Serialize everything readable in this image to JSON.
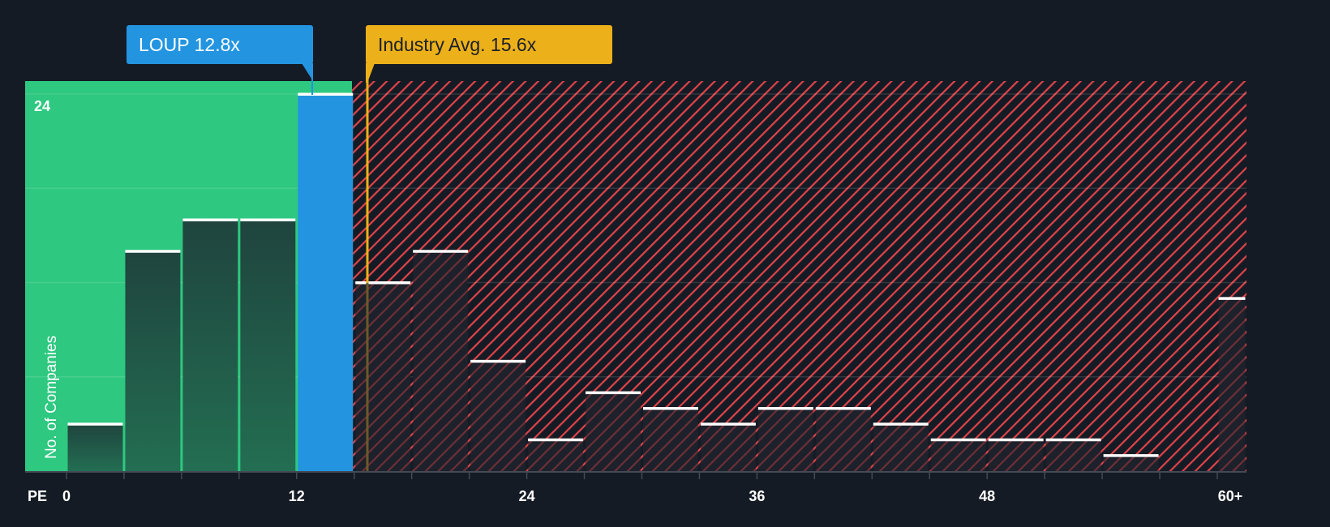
{
  "colors": {
    "background": "#151b24",
    "undervalued_zone": "#2ec880",
    "overvalued_hatch": "#e0434a",
    "company_bar": "#2394e0",
    "industry_line": "#ecb11a",
    "bar_cap": "#ffffff",
    "dark_bar": "#1f4c40"
  },
  "company_label": {
    "text": "LOUP 12.8x",
    "value": 12.8
  },
  "industry_label": {
    "text": "Industry Avg. 15.6x",
    "value": 15.6
  },
  "axes": {
    "x_prefix": "PE",
    "y_title": "No. of Companies",
    "y_top_tick": "24"
  },
  "chart_data": {
    "type": "bar",
    "title": "",
    "xlabel": "PE",
    "ylabel": "No. of Companies",
    "x_ticks": [
      "0",
      "12",
      "24",
      "36",
      "48",
      "60+"
    ],
    "x_tick_values": [
      0,
      12,
      24,
      36,
      48,
      60
    ],
    "ylim": [
      0,
      24
    ],
    "y_gridlines": [
      0,
      6,
      12,
      18,
      24
    ],
    "bin_width": 3,
    "categories": [
      "0-3",
      "3-6",
      "6-9",
      "9-12",
      "12-15",
      "15-18",
      "18-21",
      "21-24",
      "24-27",
      "27-30",
      "30-33",
      "33-36",
      "36-39",
      "39-42",
      "42-45",
      "45-48",
      "48-51",
      "51-54",
      "54-57",
      "57-60",
      "60+"
    ],
    "values": [
      3,
      14,
      16,
      16,
      24,
      12,
      14,
      7,
      2,
      5,
      4,
      3,
      4,
      4,
      3,
      2,
      2,
      2,
      1,
      0,
      11
    ],
    "highlight_bin": "12-15",
    "company": {
      "name": "LOUP",
      "pe": 12.8
    },
    "industry_avg_pe": 15.6,
    "undervalued_max_pe": 14.9
  }
}
